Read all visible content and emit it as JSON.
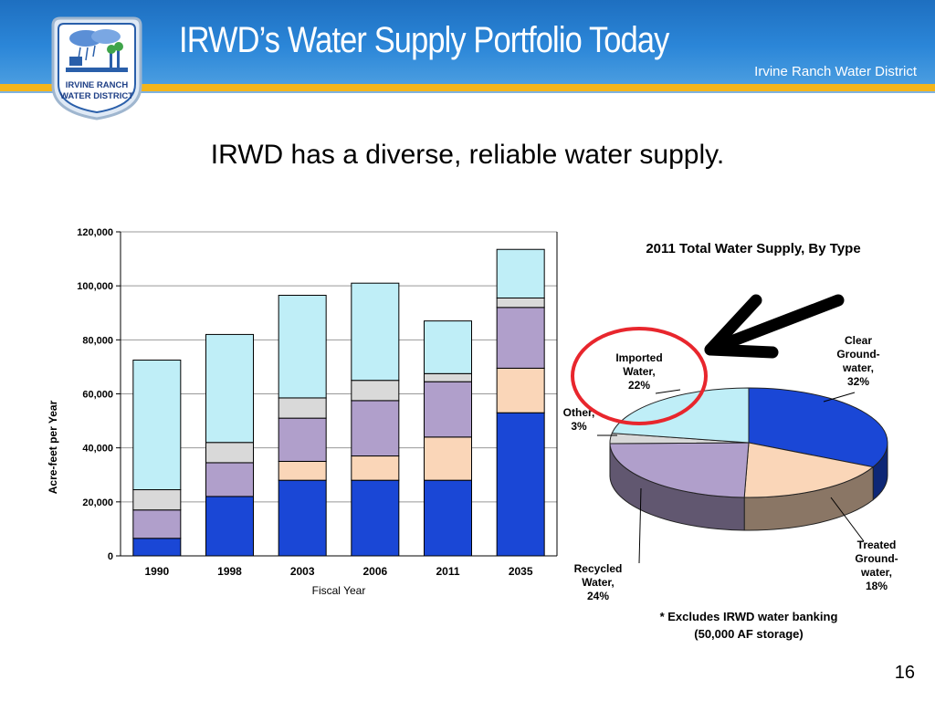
{
  "slide": {
    "title": "IRWD’s Water Supply Portfolio Today",
    "org_name": "Irvine Ranch Water District",
    "logo_text_line1": "IRVINE RANCH",
    "logo_text_line2": "WATER DISTRICT",
    "subtitle": "IRWD has a diverse, reliable water supply.",
    "footnote_line1": "* Excludes IRWD water banking",
    "footnote_line2": "(50,000 AF storage)",
    "page_number": "16"
  },
  "colors": {
    "header_blue": "#2b86d8",
    "accent_gold": "#f3b51b",
    "groundwater": "#1a47d6",
    "treated": "#fad6b8",
    "recycled": "#b09fcb",
    "other": "#d9d9d9",
    "imported": "#bfeef7",
    "highlight": "#e8262d"
  },
  "chart_data": [
    {
      "type": "bar",
      "stacked": true,
      "categories": [
        "1990",
        "1998",
        "2003",
        "2006",
        "2011",
        "2035"
      ],
      "xlabel": "Fiscal Year",
      "ylabel": "Acre-feet per Year",
      "ylim": [
        0,
        120000
      ],
      "yticks": [
        "0",
        "20,000",
        "40,000",
        "60,000",
        "80,000",
        "100,000",
        "120,000"
      ],
      "grid": true,
      "legend": "none",
      "series": [
        {
          "values": [
            6500,
            22000,
            28000,
            28000,
            28000,
            53000
          ],
          "color": "#1a47d6"
        },
        {
          "values": [
            0,
            0,
            7000,
            9000,
            16000,
            16500
          ],
          "color": "#fad6b8"
        },
        {
          "values": [
            10500,
            12500,
            16000,
            20500,
            20500,
            22500
          ],
          "color": "#b09fcb"
        },
        {
          "values": [
            7500,
            7500,
            7500,
            7500,
            3000,
            3500
          ],
          "color": "#d9d9d9"
        },
        {
          "values": [
            48000,
            40000,
            38000,
            36000,
            19500,
            18000
          ],
          "color": "#bfeef7"
        }
      ]
    },
    {
      "type": "pie",
      "title": "2011  Total Water Supply, By Type",
      "style": "3d",
      "slices": [
        {
          "name": "Clear Ground-water",
          "label_lines": [
            "Clear",
            "Ground-",
            "water,",
            "32%"
          ],
          "value": 32,
          "color": "#1a47d6"
        },
        {
          "name": "Treated Ground-water",
          "label_lines": [
            "Treated",
            "Ground-",
            "water,",
            "18%"
          ],
          "value": 18,
          "color": "#fad6b8"
        },
        {
          "name": "Recycled Water",
          "label_lines": [
            "Recycled",
            "Water,",
            "24%"
          ],
          "value": 24,
          "color": "#b09fcb"
        },
        {
          "name": "Other",
          "label_lines": [
            "Other,",
            "3%"
          ],
          "value": 3,
          "color": "#d9d9d9"
        },
        {
          "name": "Imported Water",
          "label_lines": [
            "Imported",
            "Water,",
            "22%"
          ],
          "value": 22,
          "color": "#bfeef7"
        }
      ]
    }
  ]
}
